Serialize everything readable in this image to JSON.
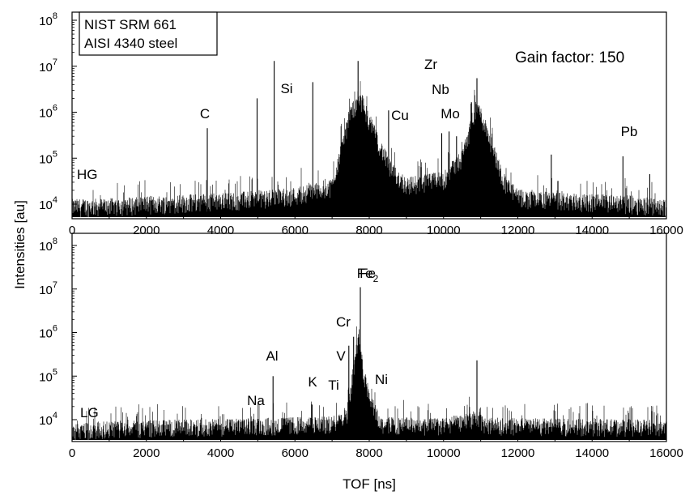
{
  "chart_data": [
    {
      "type": "line",
      "panel_label": "HG",
      "legend_lines": [
        "NIST SRM 661",
        "AISI 4340 steel"
      ],
      "annotation": "Gain factor: 150",
      "xlim": [
        0,
        16000
      ],
      "ylim": [
        3000,
        100000000
      ],
      "yscale": "log",
      "x_ticks": [
        "0",
        "2000",
        "4000",
        "6000",
        "8000",
        "10000",
        "12000",
        "14000",
        "16000"
      ],
      "y_ticks": [
        {
          "base": "10",
          "exp": "4"
        },
        {
          "base": "10",
          "exp": "5"
        },
        {
          "base": "10",
          "exp": "6"
        },
        {
          "base": "10",
          "exp": "7"
        },
        {
          "base": "10",
          "exp": "8"
        }
      ],
      "baseline": [
        [
          0,
          5000
        ],
        [
          1000,
          5200
        ],
        [
          2000,
          5800
        ],
        [
          3000,
          6200
        ],
        [
          4000,
          6800
        ],
        [
          5000,
          7500
        ],
        [
          6000,
          9000
        ],
        [
          7000,
          14000
        ],
        [
          7500,
          600000
        ],
        [
          7800,
          1000000
        ],
        [
          8200,
          150000
        ],
        [
          8600,
          30000
        ],
        [
          9000,
          15000
        ],
        [
          10000,
          20000
        ],
        [
          10500,
          60000
        ],
        [
          10900,
          800000
        ],
        [
          11200,
          200000
        ],
        [
          11600,
          20000
        ],
        [
          12000,
          8000
        ],
        [
          13000,
          7000
        ],
        [
          14000,
          6500
        ],
        [
          15000,
          6000
        ],
        [
          16000,
          5000
        ]
      ],
      "peaks": [
        {
          "x": 3640,
          "y": 450000,
          "label": "C"
        },
        {
          "x": 5440,
          "y": 13000000,
          "label": "Si"
        },
        {
          "x": 4980,
          "y": 2000000,
          "label": ""
        },
        {
          "x": 6480,
          "y": 4500000,
          "label": ""
        },
        {
          "x": 7700,
          "y": 13000000,
          "label": ""
        },
        {
          "x": 8520,
          "y": 1100000,
          "label": "Cu"
        },
        {
          "x": 9950,
          "y": 350000,
          "label": "Zr"
        },
        {
          "x": 10150,
          "y": 380000,
          "label": "Nb"
        },
        {
          "x": 10350,
          "y": 300000,
          "label": "Mo"
        },
        {
          "x": 10900,
          "y": 5500000,
          "label": ""
        },
        {
          "x": 12900,
          "y": 120000,
          "label": ""
        },
        {
          "x": 14830,
          "y": 110000,
          "label": "Pb"
        },
        {
          "x": 15550,
          "y": 45000,
          "label": ""
        }
      ]
    },
    {
      "type": "line",
      "panel_label": "LG",
      "xlabel": "TOF [ns]",
      "xlim": [
        0,
        16000
      ],
      "ylim": [
        3000,
        100000000
      ],
      "yscale": "log",
      "x_ticks": [
        "0",
        "2000",
        "4000",
        "6000",
        "8000",
        "10000",
        "12000",
        "14000",
        "16000"
      ],
      "y_ticks": [
        {
          "base": "10",
          "exp": "4"
        },
        {
          "base": "10",
          "exp": "5"
        },
        {
          "base": "10",
          "exp": "6"
        },
        {
          "base": "10",
          "exp": "7"
        },
        {
          "base": "10",
          "exp": "8"
        }
      ],
      "baseline": [
        [
          0,
          3300
        ],
        [
          2000,
          3800
        ],
        [
          4000,
          4000
        ],
        [
          5000,
          4200
        ],
        [
          6000,
          4400
        ],
        [
          7000,
          4600
        ],
        [
          7400,
          8000
        ],
        [
          7700,
          400000
        ],
        [
          7900,
          40000
        ],
        [
          8300,
          4500
        ],
        [
          10000,
          4200
        ],
        [
          10800,
          6000
        ],
        [
          11200,
          4300
        ],
        [
          13000,
          4100
        ],
        [
          16000,
          3900
        ]
      ],
      "peaks": [
        {
          "x": 5000,
          "y": 9000,
          "label": "Na"
        },
        {
          "x": 5410,
          "y": 100000,
          "label": "Al"
        },
        {
          "x": 6460,
          "y": 22000,
          "label": "K"
        },
        {
          "x": 7200,
          "y": 12000,
          "label": "Ti"
        },
        {
          "x": 7450,
          "y": 500000,
          "label": "V"
        },
        {
          "x": 7580,
          "y": 800000,
          "label": "Cr"
        },
        {
          "x": 7760,
          "y": 11000000,
          "label": "Fe"
        },
        {
          "x": 7900,
          "y": 20000,
          "label": "Ni"
        },
        {
          "x": 10900,
          "y": 230000,
          "label": "Fe",
          "label_sub": "2"
        }
      ]
    }
  ],
  "ylabel": "Intensities [au]"
}
